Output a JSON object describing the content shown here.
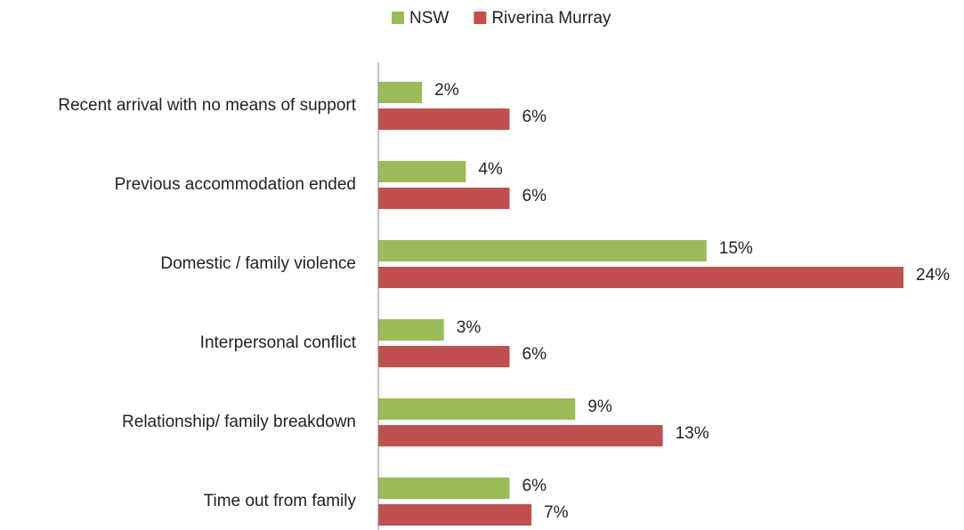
{
  "chart_data": {
    "type": "hbar",
    "categories": [
      "Recent arrival with no means of support",
      "Previous accommodation ended",
      "Domestic / family violence",
      "Interpersonal conflict",
      "Relationship/ family breakdown",
      "Time out from family"
    ],
    "series": [
      {
        "name": "NSW",
        "color": "#9bbb59",
        "values": [
          2,
          4,
          15,
          3,
          9,
          6
        ],
        "value_labels": [
          "2%",
          "4%",
          "15%",
          "3%",
          "9%",
          "6%"
        ]
      },
      {
        "name": "Riverina Murray",
        "color": "#c0504d",
        "values": [
          6,
          6,
          24,
          6,
          13,
          7
        ],
        "value_labels": [
          "6%",
          "6%",
          "24%",
          "6%",
          "13%",
          "7%"
        ]
      }
    ],
    "legend": "top"
  }
}
